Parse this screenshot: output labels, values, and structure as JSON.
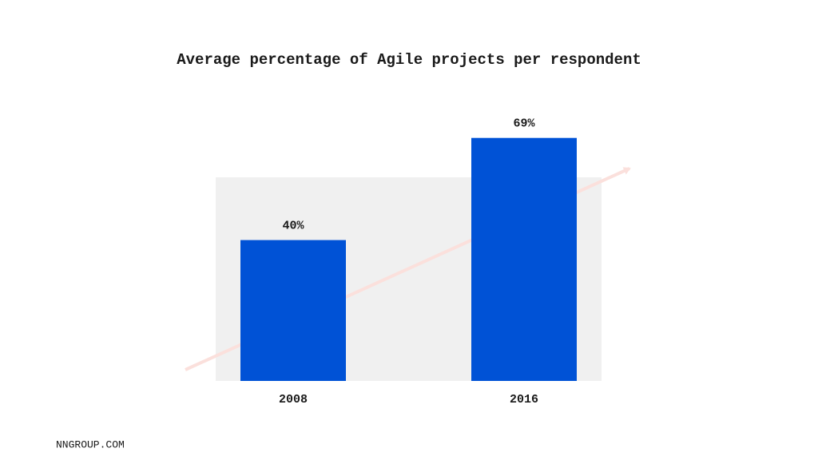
{
  "chart_data": {
    "type": "bar",
    "title": "Average percentage of Agile projects per respondent",
    "categories": [
      "2008",
      "2016"
    ],
    "values": [
      40,
      69
    ],
    "value_labels": [
      "40%",
      "69%"
    ],
    "color": "#0052d6"
  },
  "footer": "NNGROUP.COM"
}
